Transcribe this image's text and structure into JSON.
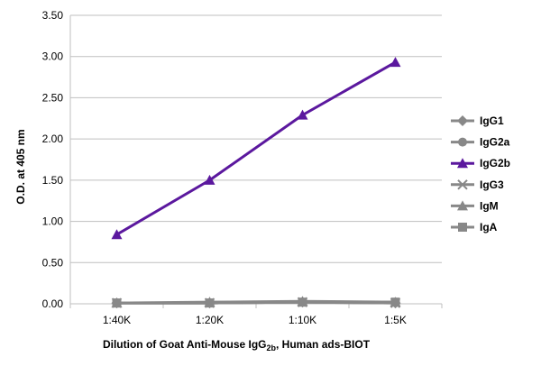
{
  "chart_data": {
    "type": "line",
    "categories": [
      "1:40K",
      "1:20K",
      "1:10K",
      "1:5K"
    ],
    "ylabel": "O.D. at 405 nm",
    "xlabel": {
      "before": "Dilution of Goat Anti-Mouse IgG",
      "sub": "2b",
      "after": ", Human ads-BIOT"
    },
    "ylim": [
      0,
      3.5
    ],
    "yticks": [
      "0.00",
      "0.50",
      "1.00",
      "1.50",
      "2.00",
      "2.50",
      "3.00",
      "3.50"
    ],
    "grid": true,
    "legend_position": "right",
    "series": [
      {
        "name": "IgG1",
        "values": [
          0.01,
          0.01,
          0.02,
          0.01
        ],
        "color": "#888888",
        "marker": "diamond"
      },
      {
        "name": "IgG2a",
        "values": [
          0.01,
          0.01,
          0.02,
          0.02
        ],
        "color": "#888888",
        "marker": "circle"
      },
      {
        "name": "IgG2b",
        "values": [
          0.84,
          1.5,
          2.29,
          2.93
        ],
        "color": "#5b189e",
        "marker": "triangle"
      },
      {
        "name": "IgG3",
        "values": [
          0.01,
          0.01,
          0.02,
          0.01
        ],
        "color": "#888888",
        "marker": "x"
      },
      {
        "name": "IgM",
        "values": [
          0.01,
          0.02,
          0.03,
          0.02
        ],
        "color": "#888888",
        "marker": "triangle"
      },
      {
        "name": "IgA",
        "values": [
          0.01,
          0.01,
          0.02,
          0.02
        ],
        "color": "#888888",
        "marker": "square"
      }
    ]
  }
}
